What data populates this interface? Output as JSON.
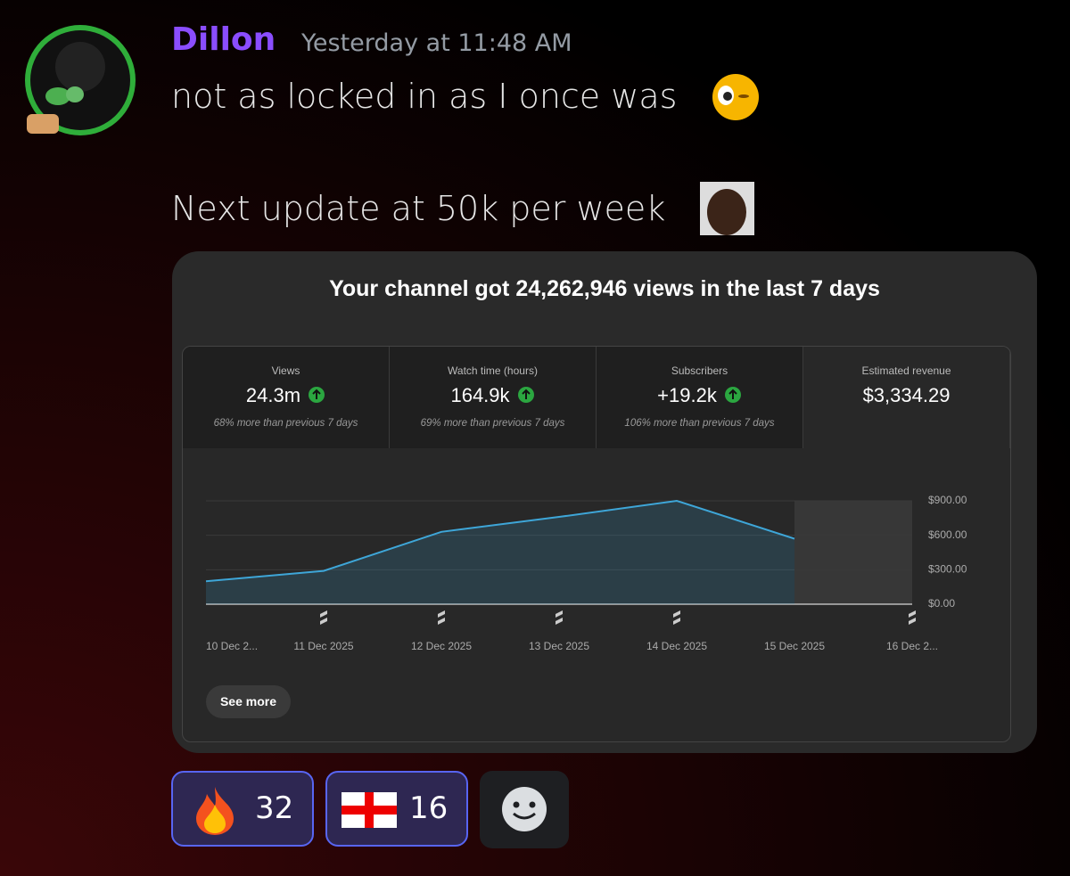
{
  "message": {
    "author": "Dillon",
    "timestamp": "Yesterday at 11:48 AM",
    "lines": [
      "not as locked in as I once was",
      "Next update at 50k per week"
    ]
  },
  "embed": {
    "title": "Your channel got 24,262,946 views in the last 7 days",
    "stats": [
      {
        "label": "Views",
        "value": "24.3m",
        "note": "68% more than previous 7 days"
      },
      {
        "label": "Watch time (hours)",
        "value": "164.9k",
        "note": "69% more than previous 7 days"
      },
      {
        "label": "Subscribers",
        "value": "+19.2k",
        "note": "106% more than previous 7 days"
      },
      {
        "label": "Estimated revenue",
        "value": "$3,334.29"
      }
    ],
    "button": "See more"
  },
  "chart_data": {
    "type": "line",
    "categories": [
      "10 Dec 2...",
      "11 Dec 2025",
      "12 Dec 2025",
      "13 Dec 2025",
      "14 Dec 2025",
      "15 Dec 2025",
      "16 Dec 2..."
    ],
    "values": [
      200,
      290,
      630,
      760,
      900,
      570,
      null
    ],
    "color": "#3ea6d8",
    "ylim": [
      0,
      900
    ],
    "yticks": [
      {
        "value": 0,
        "label": "$0.00"
      },
      {
        "value": 300,
        "label": "$300.00"
      },
      {
        "value": 600,
        "label": "$600.00"
      },
      {
        "value": 900,
        "label": "$900.00"
      }
    ],
    "grid": true
  },
  "reactions": [
    {
      "count": 32
    },
    {
      "count": 16
    }
  ]
}
